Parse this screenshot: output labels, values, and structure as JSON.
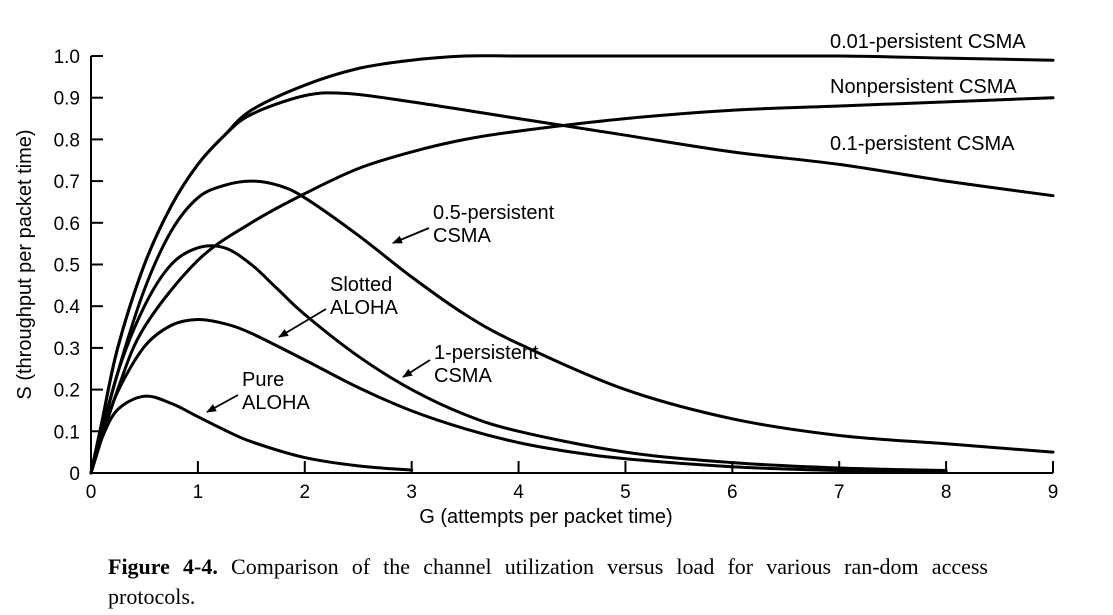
{
  "caption": {
    "label": "Figure 4-4.",
    "text": "Comparison of the channel utilization versus load for various ran-dom access protocols."
  },
  "chart_data": {
    "type": "line",
    "title": "",
    "xlabel": "G (attempts per packet time)",
    "ylabel": "S (throughput per packet time)",
    "xlim": [
      0,
      9
    ],
    "ylim": [
      0,
      1.0
    ],
    "xticks": [
      "0",
      "1",
      "2",
      "3",
      "4",
      "5",
      "6",
      "7",
      "8",
      "9"
    ],
    "yticks": [
      "0",
      "0.1",
      "0.2",
      "0.3",
      "0.4",
      "0.5",
      "0.6",
      "0.7",
      "0.8",
      "0.9",
      "1.0"
    ],
    "grid": false,
    "legend": "none",
    "series": [
      {
        "name": "0.01-persistent CSMA",
        "x": [
          0,
          0.1,
          0.25,
          0.5,
          0.75,
          1.0,
          1.25,
          1.5,
          2.0,
          2.5,
          3.0,
          3.5,
          4,
          5,
          6,
          7,
          8,
          9
        ],
        "y": [
          0,
          0.12,
          0.3,
          0.5,
          0.64,
          0.74,
          0.81,
          0.87,
          0.93,
          0.97,
          0.99,
          1.0,
          1.0,
          1.0,
          1.0,
          1.0,
          0.995,
          0.99
        ]
      },
      {
        "name": "Nonpersistent CSMA",
        "x": [
          0,
          0.25,
          0.5,
          1,
          1.5,
          2,
          2.5,
          3,
          3.5,
          4,
          5,
          6,
          7,
          8,
          9
        ],
        "y": [
          0,
          0.2,
          0.35,
          0.51,
          0.6,
          0.67,
          0.73,
          0.77,
          0.8,
          0.82,
          0.85,
          0.87,
          0.88,
          0.89,
          0.9
        ]
      },
      {
        "name": "0.1-persistent CSMA",
        "x": [
          0,
          0.1,
          0.25,
          0.5,
          0.75,
          1.0,
          1.25,
          1.5,
          2.0,
          2.4,
          3.0,
          4,
          5,
          6,
          7,
          8,
          9
        ],
        "y": [
          0,
          0.12,
          0.3,
          0.5,
          0.64,
          0.74,
          0.81,
          0.86,
          0.905,
          0.91,
          0.89,
          0.85,
          0.81,
          0.77,
          0.74,
          0.7,
          0.665
        ]
      },
      {
        "name": "0.5-persistent CSMA",
        "x": [
          0,
          0.25,
          0.5,
          0.75,
          1.0,
          1.25,
          1.5,
          1.75,
          2,
          2.5,
          3,
          3.5,
          4,
          5,
          6,
          7,
          8,
          9
        ],
        "y": [
          0,
          0.24,
          0.44,
          0.58,
          0.66,
          0.69,
          0.7,
          0.69,
          0.66,
          0.57,
          0.47,
          0.38,
          0.31,
          0.2,
          0.13,
          0.09,
          0.07,
          0.05
        ]
      },
      {
        "name": "1-persistent CSMA",
        "x": [
          0,
          0.25,
          0.5,
          0.75,
          1.0,
          1.25,
          1.5,
          1.75,
          2,
          2.5,
          3,
          3.5,
          4,
          5,
          6,
          7,
          8
        ],
        "y": [
          0,
          0.24,
          0.4,
          0.5,
          0.54,
          0.54,
          0.5,
          0.44,
          0.38,
          0.28,
          0.2,
          0.14,
          0.1,
          0.05,
          0.025,
          0.012,
          0.006
        ]
      },
      {
        "name": "Slotted ALOHA",
        "x": [
          0,
          0.1,
          0.25,
          0.5,
          0.75,
          1.0,
          1.25,
          1.5,
          2.0,
          2.5,
          3.0,
          3.5,
          4,
          4.5,
          5,
          6,
          7,
          8
        ],
        "y": [
          0,
          0.09,
          0.195,
          0.303,
          0.354,
          0.368,
          0.358,
          0.335,
          0.271,
          0.205,
          0.149,
          0.106,
          0.073,
          0.05,
          0.034,
          0.015,
          0.006,
          0.003
        ]
      },
      {
        "name": "Pure ALOHA",
        "x": [
          0,
          0.1,
          0.25,
          0.5,
          0.75,
          1.0,
          1.25,
          1.5,
          2.0,
          2.5,
          3.0
        ],
        "y": [
          0,
          0.082,
          0.152,
          0.184,
          0.167,
          0.135,
          0.103,
          0.075,
          0.037,
          0.017,
          0.007
        ]
      }
    ],
    "annotations": [
      {
        "lines": [
          "0.01-persistent CSMA"
        ],
        "series": "0.01-persistent CSMA"
      },
      {
        "lines": [
          "Nonpersistent CSMA"
        ],
        "series": "Nonpersistent CSMA"
      },
      {
        "lines": [
          "0.1-persistent CSMA"
        ],
        "series": "0.1-persistent CSMA"
      },
      {
        "lines": [
          "0.5-persistent",
          "CSMA"
        ],
        "series": "0.5-persistent CSMA"
      },
      {
        "lines": [
          "Slotted",
          "ALOHA"
        ],
        "series": "Slotted ALOHA"
      },
      {
        "lines": [
          "1-persistent",
          "CSMA"
        ],
        "series": "1-persistent CSMA"
      },
      {
        "lines": [
          "Pure",
          "ALOHA"
        ],
        "series": "Pure ALOHA"
      }
    ]
  }
}
